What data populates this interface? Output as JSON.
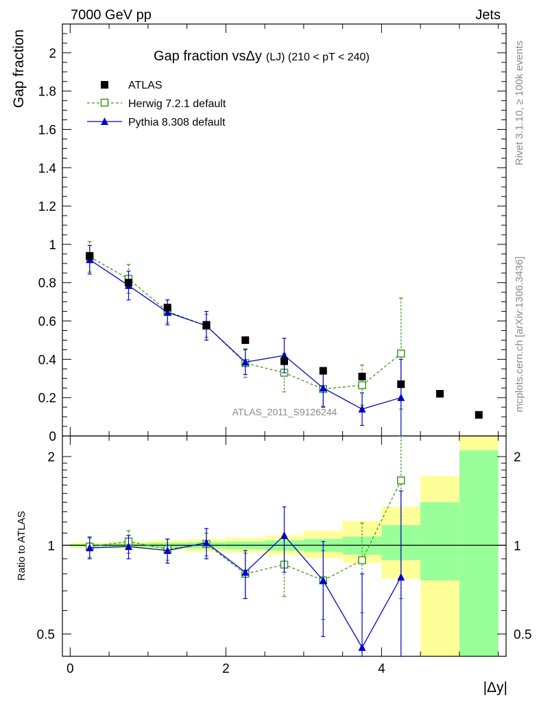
{
  "header": {
    "left": "7000 GeV pp",
    "right": "Jets"
  },
  "side_labels": {
    "rivet": "Rivet 3.1.10, ≥ 100k events",
    "mcplots": "mcplots.cern.ch [arXiv:1306.3436]"
  },
  "watermark": "ATLAS_2011_S9126244",
  "chart_data": [
    {
      "type": "scatter",
      "title": "Gap fraction vsΔy (LJ) (210 < pT < 240)",
      "title_main": "Gap fraction vsΔy",
      "title_sub": "(LJ) (210 < pT < 240)",
      "ylabel": "Gap fraction",
      "xlim": [
        -0.1,
        5.6
      ],
      "ylim": [
        0,
        2.15
      ],
      "yticks": [
        0,
        0.2,
        0.4,
        0.6,
        0.8,
        1,
        1.2,
        1.4,
        1.6,
        1.8,
        2
      ],
      "ytick_labels": [
        "0",
        "0.2",
        "0.4",
        "0.6",
        "0.8",
        "1",
        "1.2",
        "1.4",
        "1.6",
        "1.8",
        "2"
      ],
      "legend": [
        {
          "name": "ATLAS",
          "color": "#000000",
          "marker": "square-filled"
        },
        {
          "name": "Herwig 7.2.1 default",
          "color": "#3a9a1a",
          "marker": "square-open",
          "dash": "dashed"
        },
        {
          "name": "Pythia 8.308 default",
          "color": "#0000cc",
          "marker": "triangle",
          "dash": "solid"
        }
      ],
      "series": [
        {
          "name": "ATLAS",
          "x": [
            0.25,
            0.75,
            1.25,
            1.75,
            2.25,
            2.75,
            3.25,
            3.75,
            4.25,
            4.75,
            5.25
          ],
          "y": [
            0.94,
            0.8,
            0.67,
            0.58,
            0.5,
            0.39,
            0.34,
            0.31,
            0.27,
            0.22,
            0.11
          ]
        },
        {
          "name": "Herwig 7.2.1 default",
          "x": [
            0.25,
            0.75,
            1.25,
            1.75,
            2.25,
            2.75,
            3.25,
            3.75,
            4.25
          ],
          "y": [
            0.935,
            0.82,
            0.65,
            0.575,
            0.38,
            0.33,
            0.245,
            0.265,
            0.43
          ],
          "err": [
            0.08,
            0.075,
            0.06,
            0.06,
            0.075,
            0.1,
            0.09,
            0.105,
            0.29
          ]
        },
        {
          "name": "Pythia 8.308 default",
          "x": [
            0.25,
            0.75,
            1.25,
            1.75,
            2.25,
            2.75,
            3.25,
            3.75,
            4.25
          ],
          "y": [
            0.92,
            0.785,
            0.645,
            0.575,
            0.385,
            0.42,
            0.25,
            0.14,
            0.2
          ],
          "err": [
            0.075,
            0.075,
            0.065,
            0.075,
            0.065,
            0.09,
            0.1,
            0.085,
            0.2
          ]
        }
      ]
    },
    {
      "type": "scatter",
      "title": "",
      "ylabel": "Ratio to ATLAS",
      "xlabel": "|Δy|",
      "yscale": "log",
      "xlim": [
        -0.1,
        5.6
      ],
      "ylim": [
        0.42,
        2.35
      ],
      "xticks": [
        0,
        2,
        4
      ],
      "xtick_labels": [
        "0",
        "2",
        "4"
      ],
      "yticks": [
        0.5,
        1,
        2
      ],
      "ytick_labels": [
        "0.5",
        "1",
        "2"
      ],
      "bands": {
        "edges": [
          0,
          0.5,
          1,
          1.5,
          2,
          2.5,
          3,
          3.5,
          4,
          4.5,
          5,
          5.5
        ],
        "inner_lo": [
          0.99,
          0.985,
          0.98,
          0.975,
          0.97,
          0.96,
          0.95,
          0.93,
          0.89,
          0.76,
          0.4
        ],
        "inner_hi": [
          1.01,
          1.015,
          1.02,
          1.025,
          1.03,
          1.04,
          1.05,
          1.07,
          1.17,
          1.4,
          2.1
        ],
        "outer_lo": [
          0.98,
          0.97,
          0.96,
          0.955,
          0.945,
          0.925,
          0.905,
          0.87,
          0.77,
          0.38,
          0.4
        ],
        "outer_hi": [
          1.02,
          1.03,
          1.04,
          1.05,
          1.06,
          1.08,
          1.12,
          1.21,
          1.35,
          1.72,
          2.35
        ]
      },
      "series": [
        {
          "name": "Herwig 7.2.1 default",
          "x": [
            0.25,
            0.75,
            1.25,
            1.75,
            2.25,
            2.75,
            3.25,
            3.75,
            4.25
          ],
          "y": [
            0.99,
            1.03,
            0.97,
            1.01,
            0.8,
            0.86,
            0.76,
            0.89,
            1.66
          ],
          "err": [
            0.08,
            0.09,
            0.08,
            0.09,
            0.14,
            0.19,
            0.2,
            0.3,
            1.0
          ]
        },
        {
          "name": "Pythia 8.308 default",
          "x": [
            0.25,
            0.75,
            1.25,
            1.75,
            2.25,
            2.75,
            3.25,
            3.75,
            4.25
          ],
          "y": [
            0.98,
            0.99,
            0.96,
            1.02,
            0.81,
            1.08,
            0.76,
            0.45,
            0.78
          ],
          "err": [
            0.08,
            0.09,
            0.09,
            0.12,
            0.15,
            0.27,
            0.27,
            0.35,
            0.75
          ]
        }
      ]
    }
  ]
}
